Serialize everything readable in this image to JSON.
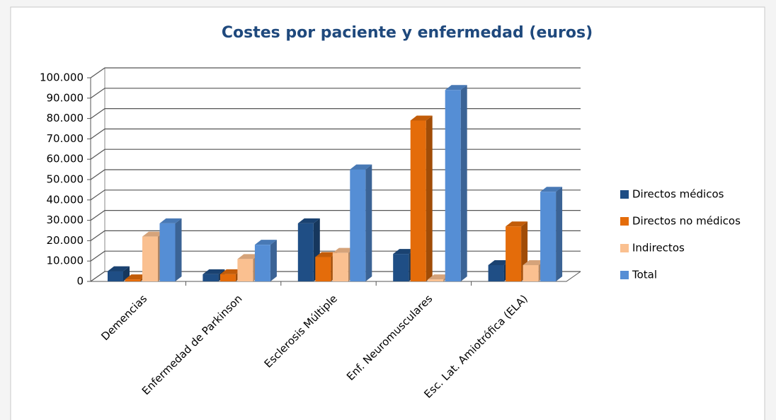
{
  "chart_data": {
    "type": "bar3d",
    "title": "Costes por paciente y enfermedad (euros)",
    "categories": [
      "Demencias",
      "Enfermedad de Parkinson",
      "Esclerosis Múltiple",
      "Enf. Neuromusculares",
      "Esc. Lat. Amiotrófica (ELA)"
    ],
    "series": [
      {
        "name": "Directos médicos",
        "color": "#1f4e85",
        "values": [
          5000,
          3500,
          28500,
          13500,
          8000
        ]
      },
      {
        "name": "Directos no médicos",
        "color": "#e46c0a",
        "values": [
          1000,
          3500,
          12000,
          79000,
          27000
        ]
      },
      {
        "name": "Indirectos",
        "color": "#fac090",
        "values": [
          22000,
          11000,
          14000,
          1000,
          8000
        ]
      },
      {
        "name": "Total",
        "color": "#558ed5",
        "values": [
          28500,
          18000,
          55000,
          94000,
          44000
        ]
      }
    ],
    "ylim": [
      0,
      100000
    ],
    "yticks": [
      0,
      {
        "value": 10000,
        "label": "10.000"
      },
      {
        "value": 20000,
        "label": "20.000"
      },
      {
        "value": 30000,
        "label": "30.000"
      },
      {
        "value": 40000,
        "label": "40.000"
      },
      {
        "value": 50000,
        "label": "50.000"
      },
      {
        "value": 60000,
        "label": "60.000"
      },
      {
        "value": 70000,
        "label": "70.000"
      },
      {
        "value": 80000,
        "label": "80.000"
      },
      {
        "value": 90000,
        "label": "90.000"
      },
      {
        "value": 100000,
        "label": "100.000"
      }
    ],
    "grid": true,
    "legend": "right"
  }
}
